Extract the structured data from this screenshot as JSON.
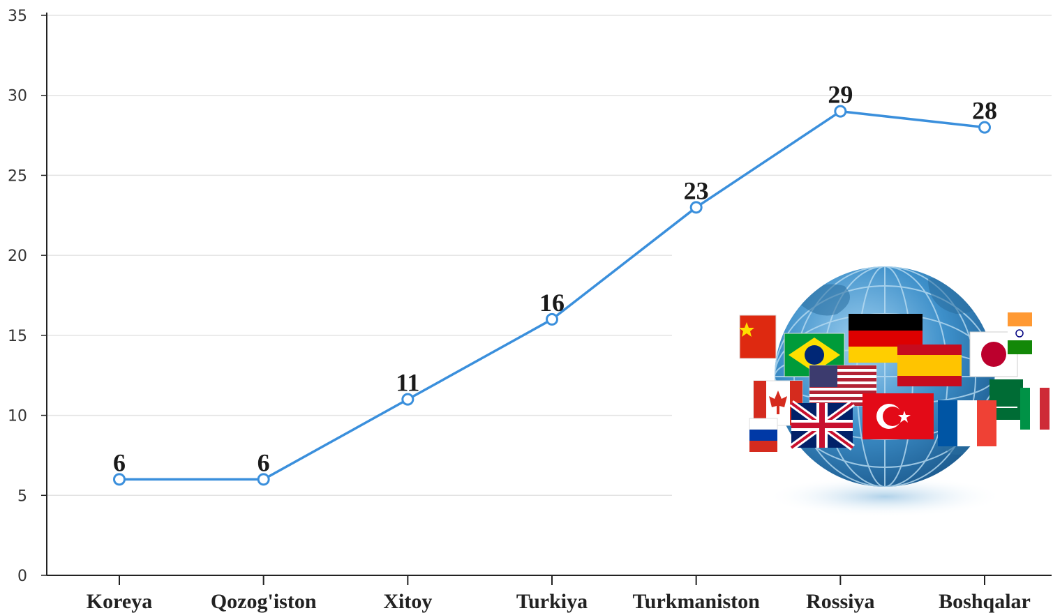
{
  "chart_data": {
    "type": "line",
    "categories": [
      "Koreya",
      "Qozog'iston",
      "Xitoy",
      "Turkiya",
      "Turkmaniston",
      "Rossiya",
      "Boshqalar"
    ],
    "series": [
      {
        "values": [
          6,
          6,
          11,
          16,
          23,
          29,
          28
        ]
      }
    ],
    "data_labels": [
      "6",
      "6",
      "11",
      "16",
      "23",
      "29",
      "28"
    ],
    "y_ticks": [
      "0",
      "5",
      "10",
      "15",
      "20",
      "25",
      "30",
      "35"
    ],
    "ylim": [
      0,
      35
    ],
    "grid": true,
    "title": "",
    "xlabel": "",
    "ylabel": "",
    "line_color": "#3a8fdc",
    "decoration": "globe-with-world-flags-image"
  }
}
